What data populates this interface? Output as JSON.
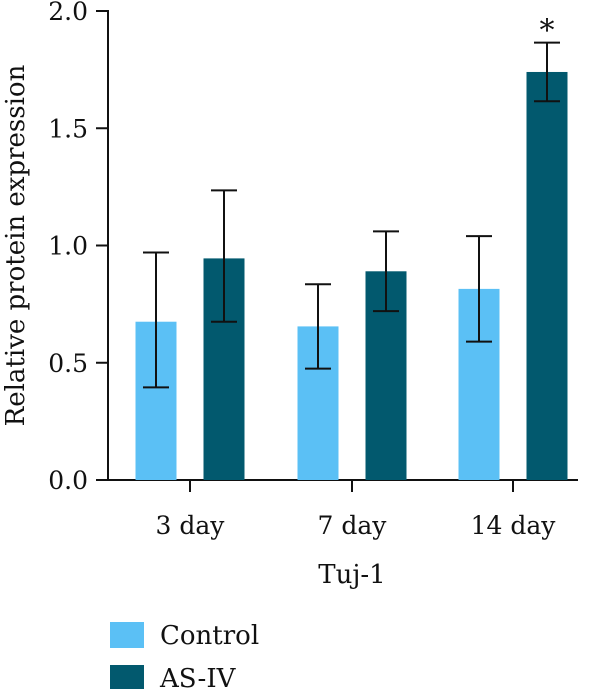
{
  "chart_data": {
    "type": "bar",
    "title": "",
    "xlabel": "Tuj-1",
    "ylabel": "Relative protein expression",
    "ylim": [
      0,
      2.0
    ],
    "yticks": [
      "0.0",
      "0.5",
      "1.0",
      "1.5",
      "2.0"
    ],
    "categories": [
      "3 day",
      "7 day",
      "14 day"
    ],
    "series": [
      {
        "name": "Control",
        "color": "#5bc0f5",
        "values": [
          0.675,
          0.655,
          0.815
        ],
        "err_low": [
          0.395,
          0.475,
          0.59
        ],
        "err_high": [
          0.97,
          0.835,
          1.04
        ]
      },
      {
        "name": "AS-IV",
        "color": "#02596e",
        "values": [
          0.945,
          0.89,
          1.74
        ],
        "err_low": [
          0.675,
          0.72,
          1.615
        ],
        "err_high": [
          1.235,
          1.06,
          1.865
        ]
      }
    ],
    "annotations": [
      {
        "category": "14 day",
        "series": "AS-IV",
        "text": "*"
      }
    ],
    "legend": "bottom-left",
    "grid": false
  }
}
